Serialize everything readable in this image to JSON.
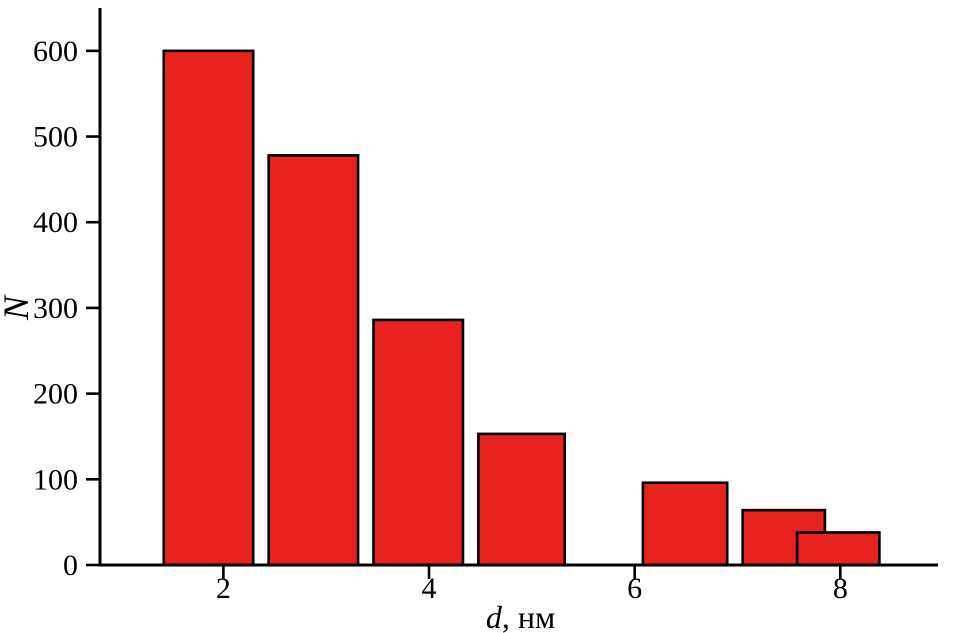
{
  "chart_data": {
    "type": "bar",
    "title": "",
    "ylabel": "N",
    "xlabel_italic": "d",
    "xlabel_rest": ", нм",
    "xlim": [
      0.8,
      8.95
    ],
    "ylim": [
      0,
      650
    ],
    "x_ticks": [
      2,
      4,
      6,
      8
    ],
    "y_ticks": [
      0,
      100,
      200,
      300,
      400,
      500,
      600
    ],
    "bar_color": "#e8221f",
    "bar_edge_color": "#000000",
    "axis_color": "#000000",
    "grid": "off",
    "legend": "none",
    "bars": [
      {
        "x_left": 1.42,
        "x_right": 2.29,
        "value": 600
      },
      {
        "x_left": 2.44,
        "x_right": 3.31,
        "value": 478
      },
      {
        "x_left": 3.46,
        "x_right": 4.33,
        "value": 286
      },
      {
        "x_left": 4.48,
        "x_right": 5.32,
        "value": 153
      },
      {
        "x_left": 6.08,
        "x_right": 6.9,
        "value": 96
      },
      {
        "x_left": 7.05,
        "x_right": 7.85,
        "value": 64
      },
      {
        "x_left": 7.58,
        "x_right": 8.38,
        "value": 38
      }
    ]
  }
}
